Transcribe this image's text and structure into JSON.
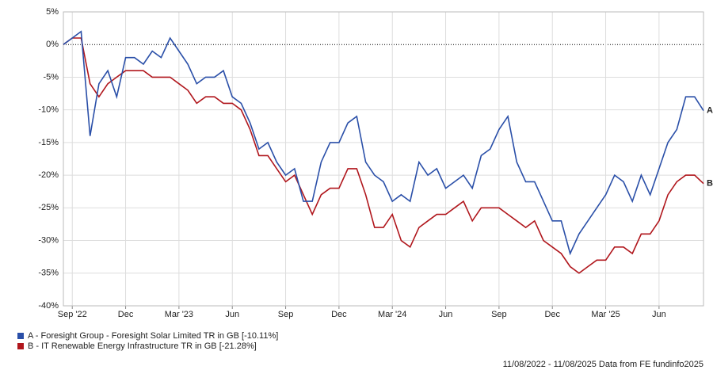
{
  "chart_data": {
    "type": "line",
    "categories": [
      null,
      "Sep '22",
      null,
      null,
      null,
      null,
      null,
      "Dec",
      null,
      null,
      null,
      null,
      null,
      "Mar '23",
      null,
      null,
      null,
      null,
      null,
      "Jun",
      null,
      null,
      null,
      null,
      null,
      "Sep",
      null,
      null,
      null,
      null,
      null,
      "Dec",
      null,
      null,
      null,
      null,
      null,
      "Mar '24",
      null,
      null,
      null,
      null,
      null,
      "Jun",
      null,
      null,
      null,
      null,
      null,
      "Sep",
      null,
      null,
      null,
      null,
      null,
      "Dec",
      null,
      null,
      null,
      null,
      null,
      "Mar '25",
      null,
      null,
      null,
      null,
      null,
      "Jun",
      null,
      null,
      null,
      null,
      null
    ],
    "series": [
      {
        "name": "A - Foresight Group - Foresight Solar Limited TR in GB [-10.11%]",
        "label": "A",
        "color": "#2a4fa8",
        "values": [
          0,
          1,
          2,
          -14,
          -6,
          -4,
          -8,
          -2,
          -2,
          -3,
          -1,
          -2,
          1,
          -1,
          -3,
          -6,
          -5,
          -5,
          -4,
          -8,
          -9,
          -12,
          -16,
          -15,
          -18,
          -20,
          -19,
          -24,
          -24,
          -18,
          -15,
          -15,
          -12,
          -11,
          -18,
          -20,
          -21,
          -24,
          -23,
          -24,
          -18,
          -20,
          -19,
          -22,
          -21,
          -20,
          -22,
          -17,
          -16,
          -13,
          -11,
          -18,
          -21,
          -21,
          -24,
          -27,
          -27,
          -32,
          -29,
          -27,
          -25,
          -23,
          -20,
          -21,
          -24,
          -20,
          -23,
          -19,
          -15,
          -13,
          -8,
          -8,
          -10.11
        ]
      },
      {
        "name": "B - IT Renewable Energy Infrastructure TR in GB [-21.28%]",
        "label": "B",
        "color": "#b0161c",
        "values": [
          0,
          1,
          1,
          -6,
          -8,
          -6,
          -5,
          -4,
          -4,
          -4,
          -5,
          -5,
          -5,
          -6,
          -7,
          -9,
          -8,
          -8,
          -9,
          -9,
          -10,
          -13,
          -17,
          -17,
          -19,
          -21,
          -20,
          -23,
          -26,
          -23,
          -22,
          -22,
          -19,
          -19,
          -23,
          -28,
          -28,
          -26,
          -30,
          -31,
          -28,
          -27,
          -26,
          -26,
          -25,
          -24,
          -27,
          -25,
          -25,
          -25,
          -26,
          -27,
          -28,
          -27,
          -30,
          -31,
          -32,
          -34,
          -35,
          -34,
          -33,
          -33,
          -31,
          -31,
          -32,
          -29,
          -29,
          -27,
          -23,
          -21,
          -20,
          -20,
          -21.28
        ]
      }
    ],
    "ylim": [
      -40,
      5
    ],
    "yticks": [
      {
        "value": 5,
        "label": "5%"
      },
      {
        "value": 0,
        "label": "0%"
      },
      {
        "value": -5,
        "label": "-5%"
      },
      {
        "value": -10,
        "label": "-10%"
      },
      {
        "value": -15,
        "label": "-15%"
      },
      {
        "value": -20,
        "label": "-20%"
      },
      {
        "value": -25,
        "label": "-25%"
      },
      {
        "value": -30,
        "label": "-30%"
      },
      {
        "value": -35,
        "label": "-35%"
      },
      {
        "value": -40,
        "label": "-40%"
      }
    ],
    "grid": true,
    "footer": "11/08/2022 - 11/08/2025 Data from FE fundinfo2025"
  }
}
